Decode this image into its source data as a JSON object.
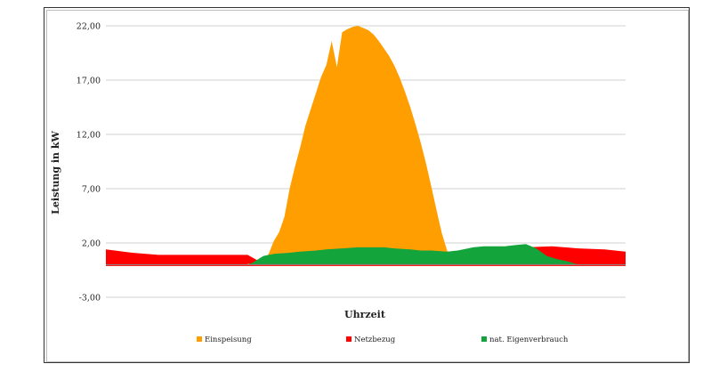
{
  "chart_data": {
    "type": "area",
    "title": "",
    "xlabel": "Uhrzeit",
    "ylabel": "Leistung in kW",
    "ylim": [
      -3.0,
      22.0
    ],
    "yticks": [
      -3.0,
      2.0,
      7.0,
      12.0,
      17.0,
      22.0
    ],
    "ytick_labels": [
      "-3,00",
      "2,00",
      "7,00",
      "12,00",
      "17,00",
      "22,00"
    ],
    "grid": true,
    "legend_position": "bottom",
    "x_count": 100,
    "colors": {
      "Einspeisung": "#ff9e00",
      "Netzbezug": "#ff0000",
      "nat. Eigenverbrauch": "#13a43b"
    },
    "series": [
      {
        "name": "Einspeisung",
        "x": [
          27,
          28,
          29,
          30,
          31,
          32,
          33,
          34,
          35,
          36,
          37,
          38,
          39,
          40,
          41,
          42,
          43,
          44,
          45,
          46,
          47,
          48,
          49,
          50,
          51,
          52,
          53,
          54,
          55,
          56,
          57,
          58,
          59,
          60,
          61,
          62,
          63,
          64,
          65,
          66,
          67,
          68,
          69,
          70,
          71,
          72,
          73,
          74,
          75,
          76,
          77,
          78,
          79,
          80,
          81,
          82,
          83,
          84,
          85,
          86,
          87,
          88,
          89,
          90
        ],
        "values": [
          0.1,
          0.1,
          0.2,
          0.4,
          1.0,
          2.2,
          3.0,
          4.4,
          7.0,
          9.0,
          10.8,
          12.8,
          14.3,
          15.8,
          17.3,
          18.4,
          20.6,
          18.2,
          21.4,
          21.7,
          21.9,
          22.0,
          21.8,
          21.6,
          21.2,
          20.6,
          19.9,
          19.2,
          18.3,
          17.2,
          15.9,
          14.5,
          12.9,
          11.2,
          9.3,
          7.2,
          5.0,
          2.9,
          1.3,
          0.8,
          0.5,
          0.3,
          0.2,
          0.0,
          0.0,
          0.0,
          0.0,
          0.0,
          0.0,
          0.0,
          0.0,
          0.0,
          0.0,
          0.0,
          0.0,
          0.0,
          0.0,
          0.0,
          0.0,
          0.0,
          0.0,
          0.0,
          0.0,
          0.0
        ]
      },
      {
        "name": "Netzbezug",
        "x": [
          0,
          5,
          10,
          15,
          20,
          25,
          27,
          30,
          35,
          40,
          45,
          50,
          55,
          60,
          65,
          70,
          75,
          80,
          85,
          90,
          95,
          99
        ],
        "values": [
          1.4,
          1.1,
          0.9,
          0.9,
          0.9,
          0.9,
          0.9,
          0.1,
          0.0,
          0.0,
          0.0,
          0.0,
          0.0,
          0.0,
          0.0,
          0.0,
          0.0,
          1.6,
          1.7,
          1.5,
          1.4,
          1.2
        ]
      },
      {
        "name": "nat. Eigenverbrauch",
        "x": [
          27,
          28,
          29,
          30,
          32,
          35,
          37,
          40,
          42,
          45,
          48,
          50,
          53,
          55,
          58,
          60,
          62,
          65,
          67,
          69,
          70,
          72,
          74,
          76,
          78,
          80,
          82,
          84,
          86,
          88,
          90
        ],
        "values": [
          0.0,
          0.2,
          0.5,
          0.8,
          1.0,
          1.1,
          1.2,
          1.3,
          1.4,
          1.5,
          1.6,
          1.6,
          1.6,
          1.5,
          1.4,
          1.3,
          1.3,
          1.2,
          1.3,
          1.5,
          1.6,
          1.7,
          1.7,
          1.7,
          1.8,
          1.9,
          1.5,
          0.8,
          0.5,
          0.3,
          0.0
        ]
      }
    ]
  }
}
